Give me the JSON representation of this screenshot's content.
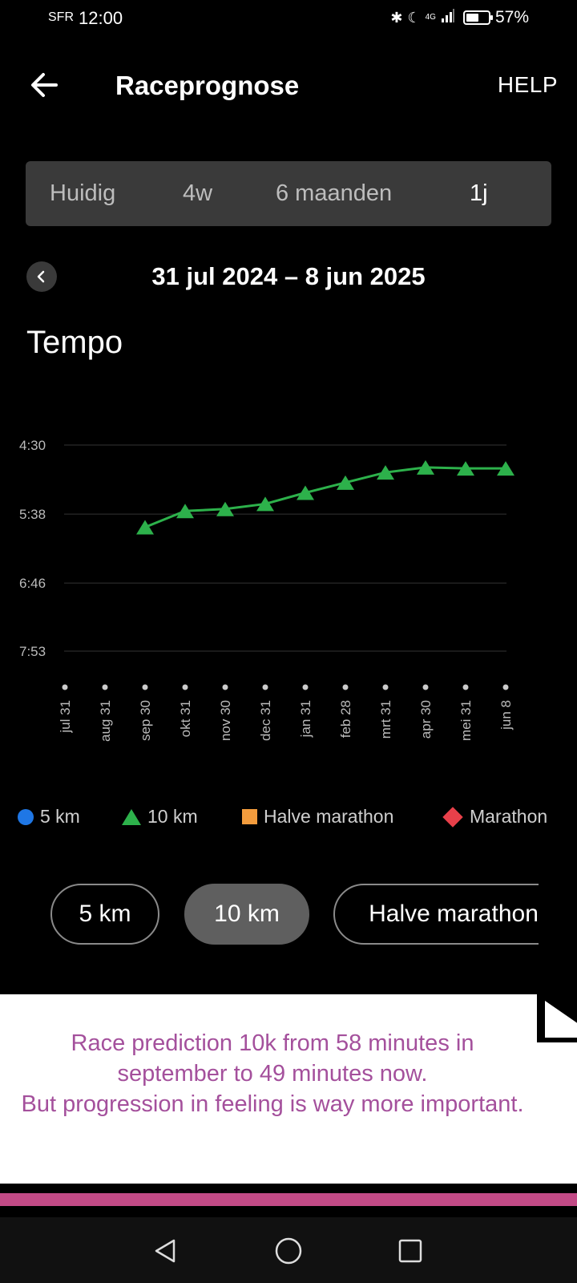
{
  "status_bar": {
    "carrier": "SFR",
    "time": "12:00",
    "network": "4G",
    "battery": "57%",
    "battery_level": 0.57
  },
  "header": {
    "title": "Raceprognose",
    "help_label": "HELP"
  },
  "period_tabs": [
    {
      "label": "Huidig",
      "active": false
    },
    {
      "label": "4w",
      "active": false
    },
    {
      "label": "6 maanden",
      "active": false
    },
    {
      "label": "1j",
      "active": true
    }
  ],
  "date_range": "31 jul 2024 – 8 jun 2025",
  "section_title": "Tempo",
  "chart_data": {
    "type": "line",
    "y_axis_reversed": true,
    "y_ticks": [
      "4:30",
      "5:38",
      "6:46",
      "7:53"
    ],
    "y_tick_seconds": [
      270,
      338,
      406,
      473
    ],
    "categories": [
      "jul 31",
      "aug 31",
      "sep 30",
      "okt 31",
      "nov 30",
      "dec 31",
      "jan 31",
      "feb 28",
      "mrt 31",
      "apr 30",
      "mei 31",
      "jun 8"
    ],
    "series": [
      {
        "name": "10 km",
        "color": "#2db14b",
        "marker": "triangle",
        "values_seconds": [
          null,
          null,
          351,
          335,
          333,
          328,
          317,
          307,
          297,
          292,
          293,
          293
        ],
        "values": [
          null,
          null,
          "5:51",
          "5:35",
          "5:33",
          "5:28",
          "5:17",
          "5:07",
          "4:57",
          "4:52",
          "4:53",
          "4:53"
        ]
      }
    ],
    "grid": true
  },
  "legend": [
    {
      "label": "5 km",
      "color": "#1f77e5",
      "marker": "circle"
    },
    {
      "label": "10 km",
      "color": "#2db14b",
      "marker": "triangle"
    },
    {
      "label": "Halve marathon",
      "color": "#f39c3d",
      "marker": "square"
    },
    {
      "label": "Marathon",
      "color": "#e8404a",
      "marker": "diamond"
    }
  ],
  "distance_chips": [
    {
      "label": "5 km",
      "active": false
    },
    {
      "label": "10 km",
      "active": true
    },
    {
      "label": "Halve marathon",
      "active": false
    }
  ],
  "annotation": {
    "line1": "Race prediction 10k from 58 minutes in september to 49 minutes now.",
    "line2": "But progression in feeling is way more important.",
    "text_color": "#a4509c",
    "accent_color": "#c24a86"
  }
}
